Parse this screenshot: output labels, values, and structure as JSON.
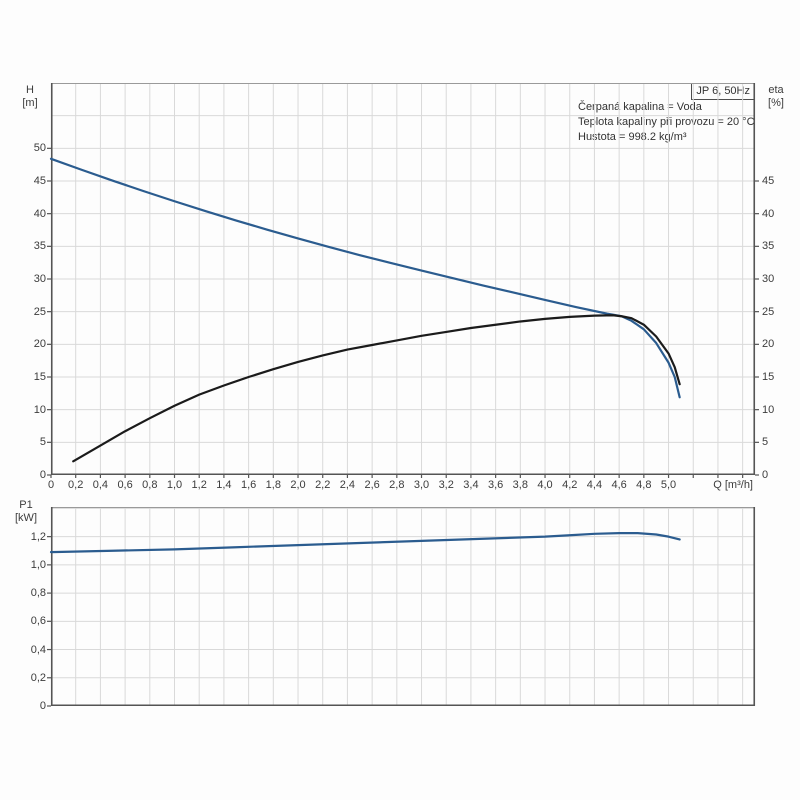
{
  "title_badge": "JP 6, 50Hz",
  "annotations": {
    "line1": "Čerpaná kapalina = Voda",
    "line2": "Teplota kapaliny při provozu = 20 °C",
    "line3": "Hustota = 998.2 kg/m³"
  },
  "colors": {
    "curve_blue": "#2b5c8f",
    "curve_black": "#1b1b1b",
    "grid": "#d9d9d9",
    "border": "#9a9a9a",
    "axis_dark": "#545454",
    "text": "#3c3c3c",
    "background": "#fdfdfd"
  },
  "chart_data": [
    {
      "type": "line",
      "title": "JP 6, 50Hz",
      "annotations": [
        "Čerpaná kapalina = Voda",
        "Teplota kapaliny při provozu = 20 °C",
        "Hustota = 998.2 kg/m³"
      ],
      "x_axis": {
        "title": "Q [m³/h]",
        "min": 0,
        "max": 5.7,
        "grid_step": 0.2,
        "tick_values": [
          0,
          0.2,
          0.4,
          0.6,
          0.8,
          1.0,
          1.2,
          1.4,
          1.6,
          1.8,
          2.0,
          2.2,
          2.4,
          2.6,
          2.8,
          3.0,
          3.2,
          3.4,
          3.6,
          3.8,
          4.0,
          4.2,
          4.4,
          4.6,
          4.8,
          5.0
        ],
        "tick_labels": [
          "0",
          "0,2",
          "0,4",
          "0,6",
          "0,8",
          "1,0",
          "1,2",
          "1,4",
          "1,6",
          "1,8",
          "2,0",
          "2,2",
          "2,4",
          "2,6",
          "2,8",
          "3,0",
          "3,2",
          "3,4",
          "3,6",
          "3,8",
          "4,0",
          "4,2",
          "4,4",
          "4,6",
          "4,8",
          "5,0"
        ]
      },
      "y_left_axis": {
        "name": "H",
        "unit": "[m]",
        "min": 0,
        "max": 60,
        "grid_step": 5,
        "tick_values": [
          0,
          5,
          10,
          15,
          20,
          25,
          30,
          35,
          40,
          45,
          50
        ],
        "tick_labels": [
          "0",
          "5",
          "10",
          "15",
          "20",
          "25",
          "30",
          "35",
          "40",
          "45",
          "50"
        ]
      },
      "y_right_axis": {
        "name": "eta",
        "unit": "[%]",
        "min": 0,
        "max": 60,
        "tick_values": [
          0,
          5,
          10,
          15,
          20,
          25,
          30,
          35,
          40,
          45
        ],
        "tick_labels": [
          "0",
          "5",
          "10",
          "15",
          "20",
          "25",
          "30",
          "35",
          "40",
          "45"
        ]
      },
      "grid": true,
      "legend": "none",
      "series": [
        {
          "name": "H",
          "axis": "left",
          "color": "#2b5c8f",
          "points": [
            [
              0,
              48.4
            ],
            [
              0.25,
              46.7
            ],
            [
              0.5,
              45.05
            ],
            [
              0.75,
              43.45
            ],
            [
              1,
              41.9
            ],
            [
              1.25,
              40.4
            ],
            [
              1.5,
              38.95
            ],
            [
              1.75,
              37.55
            ],
            [
              2,
              36.2
            ],
            [
              2.25,
              34.9
            ],
            [
              2.5,
              33.65
            ],
            [
              2.75,
              32.45
            ],
            [
              3,
              31.3
            ],
            [
              3.25,
              30.15
            ],
            [
              3.5,
              29.0
            ],
            [
              3.75,
              27.9
            ],
            [
              4,
              26.8
            ],
            [
              4.25,
              25.7
            ],
            [
              4.5,
              24.7
            ],
            [
              4.62,
              24.3
            ],
            [
              4.7,
              23.6
            ],
            [
              4.8,
              22.3
            ],
            [
              4.9,
              20.2
            ],
            [
              5,
              17.2
            ],
            [
              5.05,
              15.0
            ],
            [
              5.09,
              11.9
            ]
          ]
        },
        {
          "name": "eta",
          "axis": "right",
          "color": "#1b1b1b",
          "points": [
            [
              0.18,
              2.1
            ],
            [
              0.4,
              4.5
            ],
            [
              0.6,
              6.7
            ],
            [
              0.8,
              8.7
            ],
            [
              1,
              10.6
            ],
            [
              1.2,
              12.3
            ],
            [
              1.4,
              13.7
            ],
            [
              1.6,
              15.0
            ],
            [
              1.8,
              16.2
            ],
            [
              2,
              17.3
            ],
            [
              2.2,
              18.3
            ],
            [
              2.4,
              19.2
            ],
            [
              2.6,
              19.9
            ],
            [
              2.8,
              20.6
            ],
            [
              3,
              21.3
            ],
            [
              3.2,
              21.9
            ],
            [
              3.4,
              22.5
            ],
            [
              3.6,
              23.0
            ],
            [
              3.8,
              23.5
            ],
            [
              4,
              23.9
            ],
            [
              4.2,
              24.2
            ],
            [
              4.4,
              24.4
            ],
            [
              4.55,
              24.45
            ],
            [
              4.62,
              24.3
            ],
            [
              4.7,
              24.0
            ],
            [
              4.8,
              23.0
            ],
            [
              4.9,
              21.2
            ],
            [
              5,
              18.6
            ],
            [
              5.05,
              16.5
            ],
            [
              5.09,
              13.9
            ]
          ]
        }
      ]
    },
    {
      "type": "line",
      "x_axis": {
        "min": 0,
        "max": 5.7,
        "grid_step": 0.2,
        "tick_values": [],
        "tick_labels": []
      },
      "y_left_axis": {
        "name": "P1",
        "unit": "[kW]",
        "min": 0,
        "max": 1.41,
        "grid_step": 0.2,
        "tick_values": [
          0,
          0.2,
          0.4,
          0.6,
          0.8,
          1.0,
          1.2
        ],
        "tick_labels": [
          "0",
          "0,2",
          "0,4",
          "0,6",
          "0,8",
          "1,0",
          "1,2"
        ]
      },
      "grid": true,
      "legend": "none",
      "series": [
        {
          "name": "P1",
          "axis": "left",
          "color": "#2b5c8f",
          "points": [
            [
              0,
              1.09
            ],
            [
              0.5,
              1.1
            ],
            [
              1,
              1.11
            ],
            [
              1.5,
              1.125
            ],
            [
              2,
              1.14
            ],
            [
              2.5,
              1.155
            ],
            [
              3,
              1.17
            ],
            [
              3.5,
              1.185
            ],
            [
              4,
              1.2
            ],
            [
              4.2,
              1.21
            ],
            [
              4.4,
              1.22
            ],
            [
              4.6,
              1.225
            ],
            [
              4.75,
              1.225
            ],
            [
              4.9,
              1.215
            ],
            [
              5,
              1.2
            ],
            [
              5.09,
              1.18
            ]
          ]
        }
      ]
    }
  ]
}
